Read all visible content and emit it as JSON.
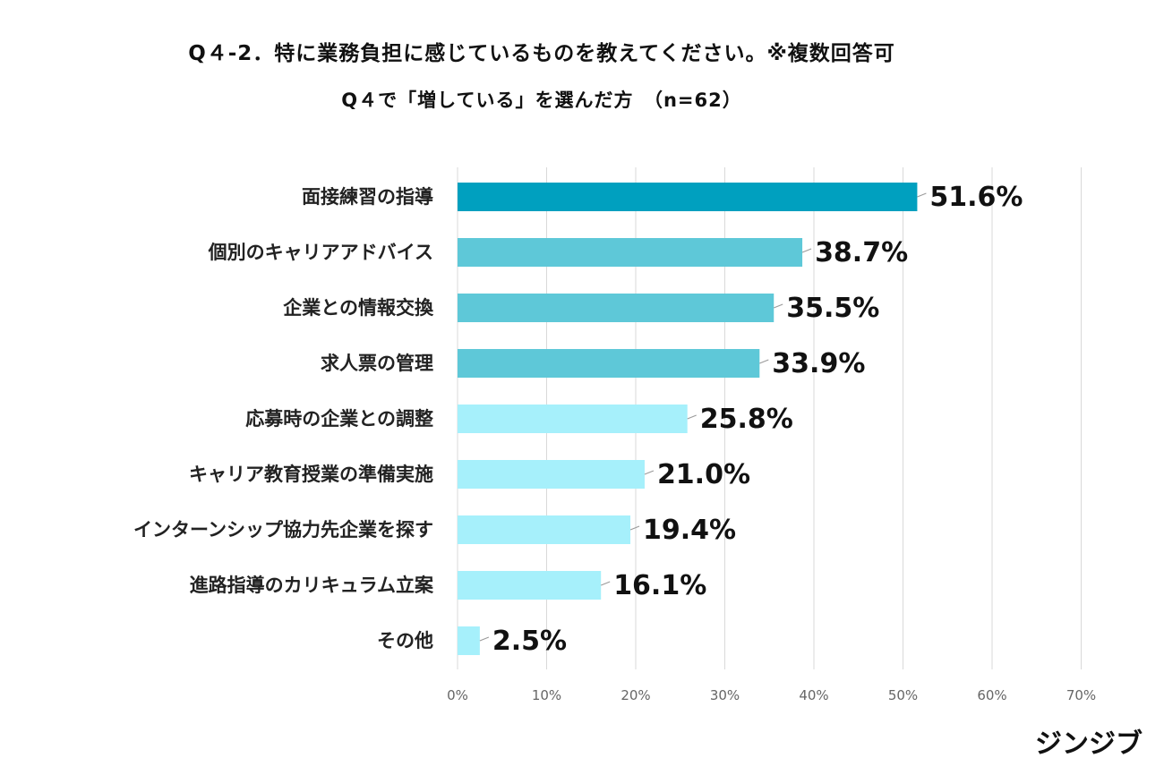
{
  "header": {
    "title": "Q４-2．特に業務負担に感じているものを教えてください。※複数回答可",
    "subtitle": "Q４で「増している」を選んだ方　（n=62）"
  },
  "logo": "ジンジブ",
  "chart_data": {
    "type": "bar",
    "orientation": "horizontal",
    "categories": [
      "面接練習の指導",
      "個別のキャリアアドバイス",
      "企業との情報交換",
      "求人票の管理",
      "応募時の企業との調整",
      "キャリア教育授業の準備実施",
      "インターンシップ協力先企業を探す",
      "進路指導のカリキュラム立案",
      "その他"
    ],
    "values": [
      51.6,
      38.7,
      35.5,
      33.9,
      25.8,
      21.0,
      19.4,
      16.1,
      2.5
    ],
    "value_labels": [
      "51.6%",
      "38.7%",
      "35.5%",
      "33.9%",
      "25.8%",
      "21.0%",
      "19.4%",
      "16.1%",
      "2.5%"
    ],
    "bar_colors": [
      "#00a0bf",
      "#5ec8d8",
      "#5ec8d8",
      "#5ec8d8",
      "#a6f0fb",
      "#a6f0fb",
      "#a6f0fb",
      "#a6f0fb",
      "#a6f0fb"
    ],
    "xlim": [
      0,
      70
    ],
    "x_ticks": [
      0,
      10,
      20,
      30,
      40,
      50,
      60,
      70
    ],
    "x_tick_labels": [
      "0%",
      "10%",
      "20%",
      "30%",
      "40%",
      "50%",
      "60%",
      "70%"
    ],
    "grid": true,
    "gridline_color": "#d9d9d9"
  }
}
